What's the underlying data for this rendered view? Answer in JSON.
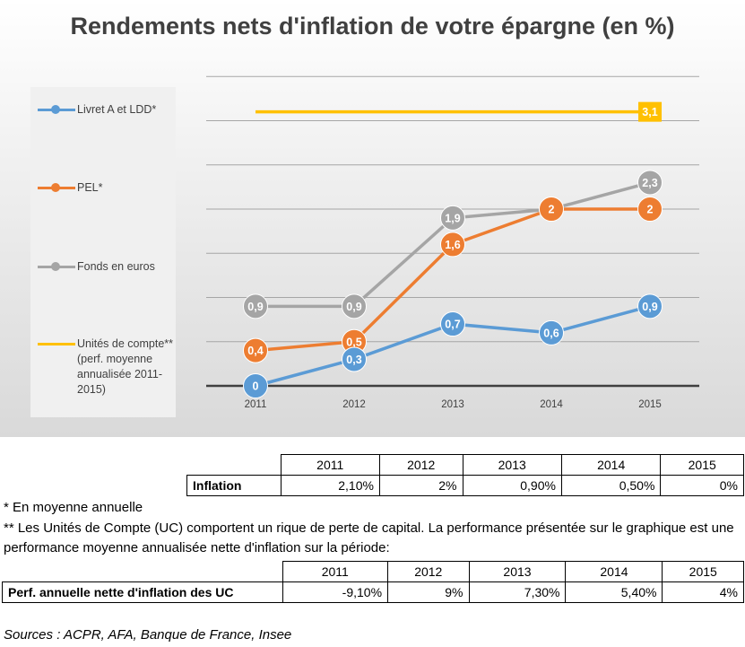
{
  "chart_data": {
    "type": "line",
    "title": "Rendements nets d'inflation de votre épargne (en %)",
    "categories": [
      "2011",
      "2012",
      "2013",
      "2014",
      "2015"
    ],
    "ylim": [
      0,
      3.5
    ],
    "grid": true,
    "legend_position": "left",
    "series": [
      {
        "name": "Livret A et LDD*",
        "color": "#5b9bd5",
        "values": [
          0,
          0.3,
          0.7,
          0.6,
          0.9
        ],
        "labels": [
          "0",
          "0,3",
          "0,7",
          "0,6",
          "0,9"
        ]
      },
      {
        "name": "PEL*",
        "color": "#ed7d31",
        "values": [
          0.4,
          0.5,
          1.6,
          2,
          2
        ],
        "labels": [
          "0,4",
          "0,5",
          "1,6",
          "2",
          "2"
        ]
      },
      {
        "name": "Fonds en euros",
        "color": "#a5a5a5",
        "values": [
          0.9,
          0.9,
          1.9,
          2,
          2.3
        ],
        "labels": [
          "0,9",
          "0,9",
          "1,9",
          "2",
          "2,3"
        ]
      },
      {
        "name": "Unités de compte** (perf. moyenne annualisée 2011-2015)",
        "color": "#ffc000",
        "values": [
          3.1,
          3.1,
          3.1,
          3.1,
          3.1
        ],
        "labels": [
          "3,1"
        ]
      }
    ]
  },
  "inflation_table": {
    "years": [
      "2011",
      "2012",
      "2013",
      "2014",
      "2015"
    ],
    "label": "Inflation",
    "values": [
      "2,10%",
      "2%",
      "0,90%",
      "0,50%",
      "0%"
    ]
  },
  "notes": {
    "note1": "* En moyenne annuelle",
    "note2": "** Les Unités de Compte (UC) comportent un rique de perte de capital. La performance présentée sur le graphique est une performance moyenne annualisée nette d'inflation sur la période:"
  },
  "uc_table": {
    "years": [
      "2011",
      "2012",
      "2013",
      "2014",
      "2015"
    ],
    "label": "Perf. annuelle nette d'inflation des UC",
    "values": [
      "-9,10%",
      "9%",
      "7,30%",
      "5,40%",
      "4%"
    ]
  },
  "sources": "Sources : ACPR, AFA, Banque de France, Insee"
}
